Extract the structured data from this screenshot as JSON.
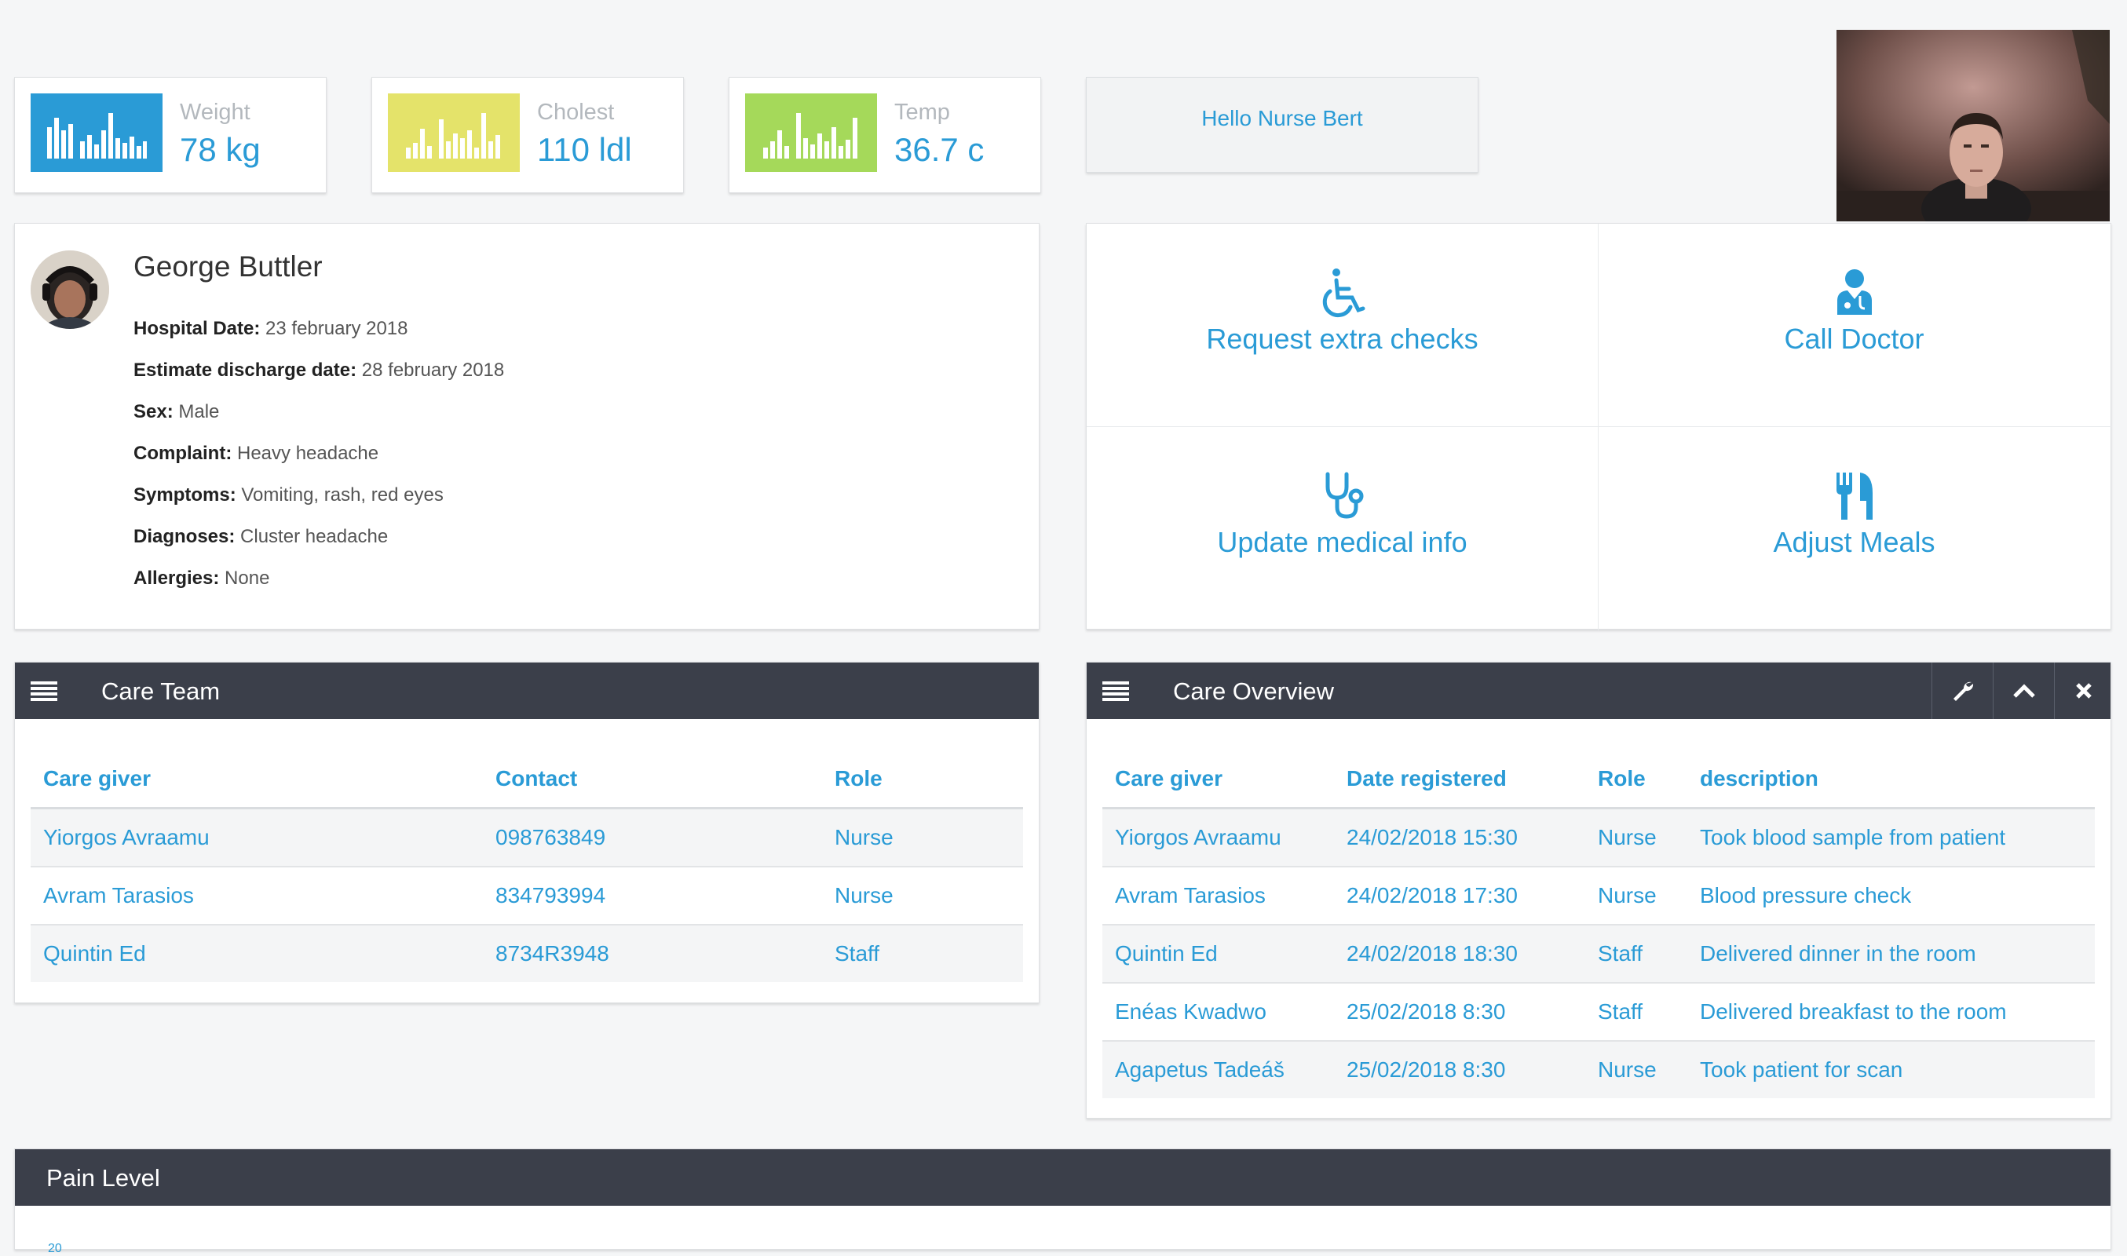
{
  "stats": [
    {
      "label": "Weight",
      "value": "78 kg",
      "color": "#2a9bd6",
      "icon": "bar-chart-icon"
    },
    {
      "label": "Cholest",
      "value": "110 ldl",
      "color": "#e4e36a",
      "icon": "bar-chart-icon"
    },
    {
      "label": "Temp",
      "value": "36.7 c",
      "color": "#a5d95a",
      "icon": "bar-chart-icon"
    }
  ],
  "greeting": "Hello Nurse Bert",
  "patient": {
    "name": "George Buttler",
    "fields": [
      {
        "label": "Hospital Date:",
        "value": "23 february 2018"
      },
      {
        "label": "Estimate discharge date:",
        "value": "28 february 2018"
      },
      {
        "label": "Sex:",
        "value": "Male"
      },
      {
        "label": "Complaint:",
        "value": "Heavy headache"
      },
      {
        "label": "Symptoms:",
        "value": "Vomiting, rash, red eyes"
      },
      {
        "label": "Diagnoses:",
        "value": "Cluster headache"
      },
      {
        "label": "Allergies:",
        "value": "None"
      }
    ]
  },
  "actions": [
    {
      "label": "Request extra checks",
      "icon": "wheelchair-icon"
    },
    {
      "label": "Call Doctor",
      "icon": "doctor-icon"
    },
    {
      "label": "Update medical info",
      "icon": "stethoscope-icon"
    },
    {
      "label": "Adjust Meals",
      "icon": "cutlery-icon"
    }
  ],
  "care_team": {
    "title": "Care Team",
    "columns": [
      "Care giver",
      "Contact",
      "Role"
    ],
    "rows": [
      [
        "Yiorgos Avraamu",
        "098763849",
        "Nurse"
      ],
      [
        "Avram Tarasios",
        "834793994",
        "Nurse"
      ],
      [
        "Quintin Ed",
        "8734R3948",
        "Staff"
      ]
    ]
  },
  "care_overview": {
    "title": "Care Overview",
    "columns": [
      "Care giver",
      "Date registered",
      "Role",
      "description"
    ],
    "rows": [
      [
        "Yiorgos Avraamu",
        "24/02/2018 15:30",
        "Nurse",
        "Took blood sample from patient"
      ],
      [
        "Avram Tarasios",
        "24/02/2018 17:30",
        "Nurse",
        "Blood pressure check"
      ],
      [
        "Quintin Ed",
        "24/02/2018 18:30",
        "Staff",
        "Delivered dinner in the room"
      ],
      [
        "Enéas Kwadwo",
        "25/02/2018 8:30",
        "Staff",
        "Delivered breakfast to the room"
      ],
      [
        "Agapetus Tadeáš",
        "25/02/2018 8:30",
        "Nurse",
        "Took patient for scan"
      ]
    ]
  },
  "pain_level": {
    "title": "Pain Level",
    "first_tick": "20"
  }
}
